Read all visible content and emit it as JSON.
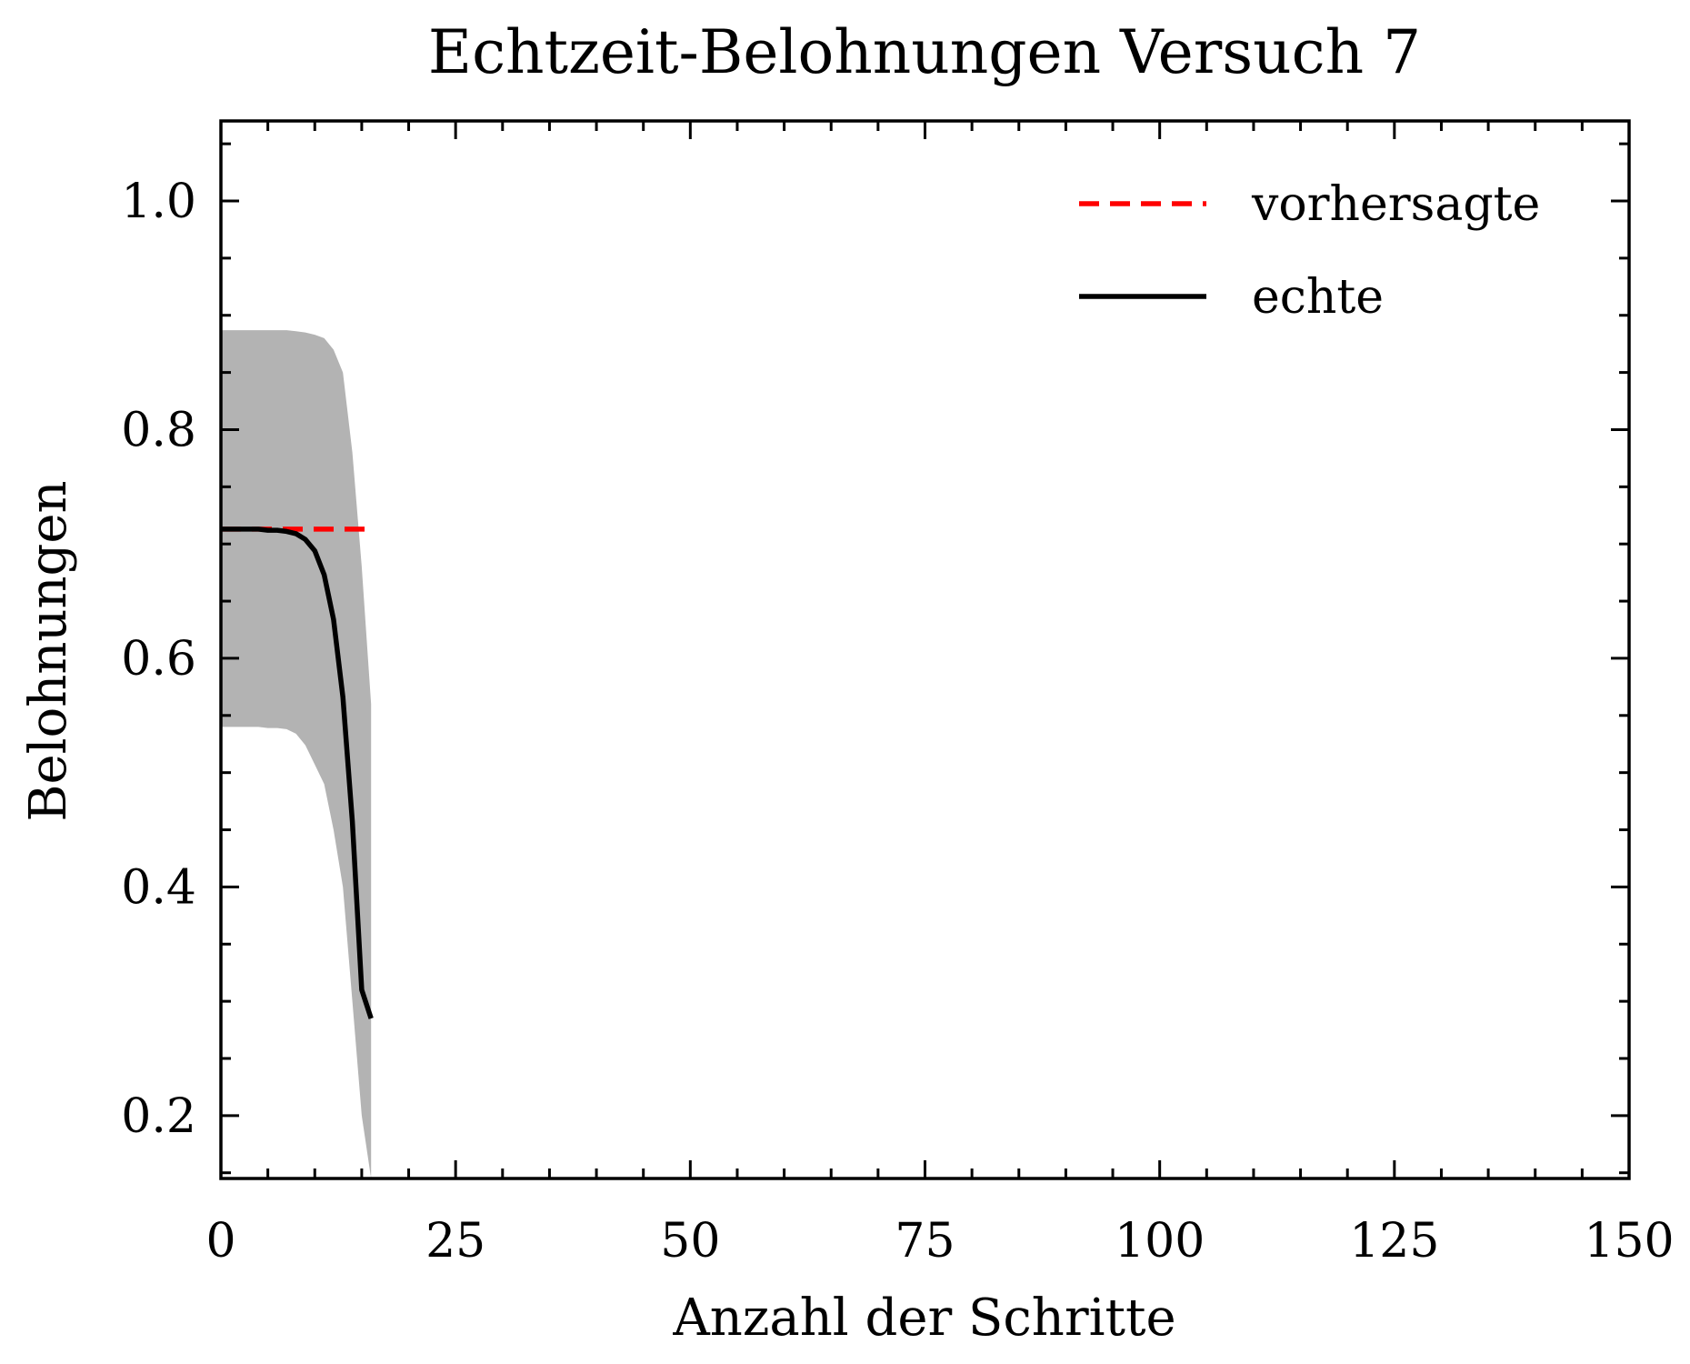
{
  "chart_data": {
    "type": "line",
    "title": "Echtzeit-Belohnungen Versuch 7",
    "xlabel": "Anzahl der Schritte",
    "ylabel": "Belohnungen",
    "xlim": [
      0,
      150
    ],
    "ylim": [
      0.145,
      1.07
    ],
    "xticks": [
      0,
      25,
      50,
      75,
      100,
      125,
      150
    ],
    "xtick_labels": [
      "0",
      "25",
      "50",
      "75",
      "100",
      "125",
      "150"
    ],
    "yticks": [
      0.2,
      0.4,
      0.6,
      0.8,
      1.0
    ],
    "ytick_labels": [
      "0.2",
      "0.4",
      "0.6",
      "0.8",
      "1.0"
    ],
    "grid": false,
    "legend_position": "top-right",
    "series": [
      {
        "name": "vorhersagte",
        "color": "#ff0000",
        "style": "dashed",
        "x": [
          0,
          16
        ],
        "y": [
          0.713,
          0.713
        ]
      },
      {
        "name": "echte",
        "color": "#000000",
        "style": "solid",
        "x": [
          0,
          1,
          2,
          3,
          4,
          5,
          6,
          7,
          8,
          9,
          10,
          11,
          12,
          13,
          14,
          15,
          16
        ],
        "y": [
          0.713,
          0.713,
          0.713,
          0.713,
          0.713,
          0.712,
          0.712,
          0.711,
          0.709,
          0.704,
          0.694,
          0.673,
          0.634,
          0.566,
          0.457,
          0.31,
          0.285
        ]
      }
    ],
    "band": {
      "color": "#b3b3b3",
      "x": [
        0,
        1,
        2,
        3,
        4,
        5,
        6,
        7,
        8,
        9,
        10,
        11,
        12,
        13,
        14,
        15,
        16
      ],
      "lower": [
        0.54,
        0.54,
        0.54,
        0.54,
        0.54,
        0.539,
        0.539,
        0.538,
        0.534,
        0.524,
        0.507,
        0.49,
        0.45,
        0.4,
        0.3,
        0.2,
        0.145
      ],
      "upper": [
        0.887,
        0.887,
        0.887,
        0.887,
        0.887,
        0.887,
        0.887,
        0.887,
        0.886,
        0.885,
        0.883,
        0.88,
        0.87,
        0.85,
        0.78,
        0.68,
        0.56
      ]
    }
  }
}
